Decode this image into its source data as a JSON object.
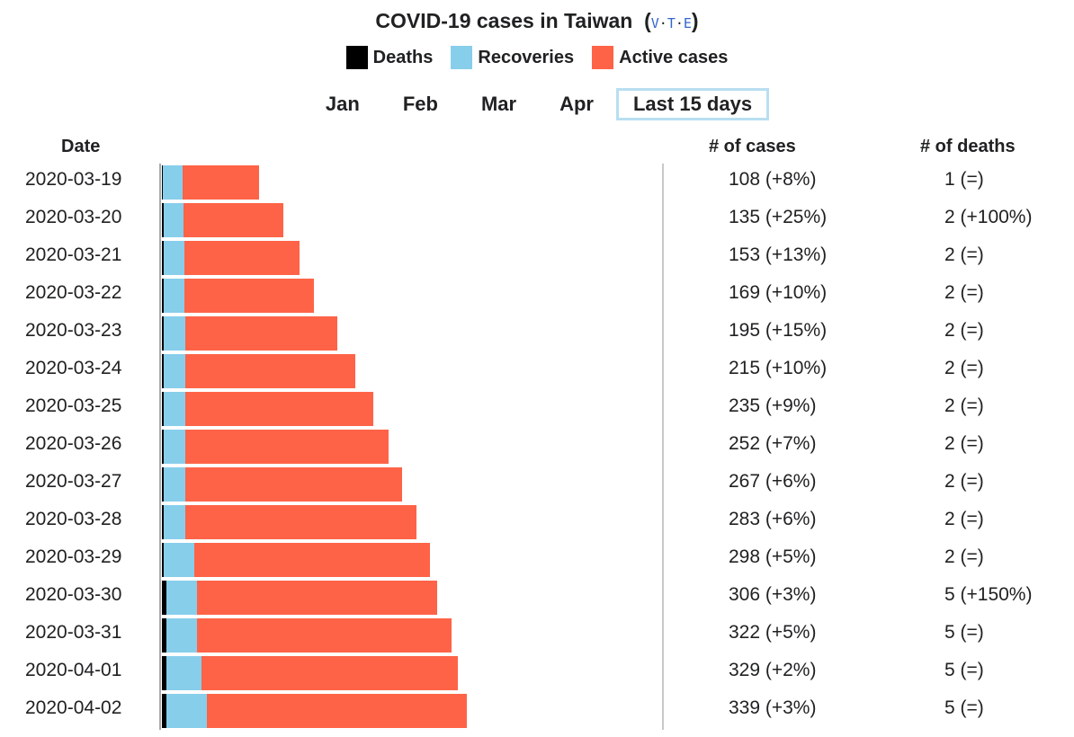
{
  "title": "COVID-19 cases in Taiwan",
  "vte": {
    "v": "V",
    "t": "T",
    "e": "E",
    "sep": "·"
  },
  "legend": [
    {
      "label": "Deaths",
      "color": "#000000"
    },
    {
      "label": "Recoveries",
      "color": "#87ceeb"
    },
    {
      "label": "Active cases",
      "color": "#ff6347"
    }
  ],
  "months": [
    {
      "label": "Jan",
      "active": false
    },
    {
      "label": "Feb",
      "active": false
    },
    {
      "label": "Mar",
      "active": false
    },
    {
      "label": "Apr",
      "active": false
    },
    {
      "label": "Last 15 days",
      "active": true
    }
  ],
  "headers": {
    "date": "Date",
    "cases": "# of cases",
    "deaths": "# of deaths"
  },
  "chart_data": {
    "type": "bar",
    "title": "COVID-19 cases in Taiwan",
    "orientation": "horizontal-stacked",
    "categories": [
      "2020-03-19",
      "2020-03-20",
      "2020-03-21",
      "2020-03-22",
      "2020-03-23",
      "2020-03-24",
      "2020-03-25",
      "2020-03-26",
      "2020-03-27",
      "2020-03-28",
      "2020-03-29",
      "2020-03-30",
      "2020-03-31",
      "2020-04-01",
      "2020-04-02"
    ],
    "series": [
      {
        "name": "Deaths",
        "color": "#000000",
        "values": [
          1,
          2,
          2,
          2,
          2,
          2,
          2,
          2,
          2,
          2,
          2,
          5,
          5,
          5,
          5
        ]
      },
      {
        "name": "Recoveries",
        "color": "#87ceeb",
        "values": [
          22,
          22,
          23,
          23,
          24,
          24,
          24,
          24,
          24,
          24,
          34,
          34,
          34,
          39,
          45
        ]
      },
      {
        "name": "Active cases",
        "color": "#ff6347",
        "values": [
          85,
          111,
          128,
          144,
          169,
          189,
          209,
          226,
          241,
          257,
          262,
          267,
          283,
          285,
          289
        ]
      }
    ],
    "cases_label": [
      "108 (+8%)",
      "135 (+25%)",
      "153 (+13%)",
      "169 (+10%)",
      "195 (+15%)",
      "215 (+10%)",
      "235 (+9%)",
      "252 (+7%)",
      "267 (+6%)",
      "283 (+6%)",
      "298 (+5%)",
      "306 (+3%)",
      "322 (+5%)",
      "329 (+2%)",
      "339 (+3%)"
    ],
    "deaths_label": [
      "1 (=)",
      "2 (+100%)",
      "2 (=)",
      "2 (=)",
      "2 (=)",
      "2 (=)",
      "2 (=)",
      "2 (=)",
      "2 (=)",
      "2 (=)",
      "2 (=)",
      "5 (+150%)",
      "5 (=)",
      "5 (=)",
      "5 (=)"
    ],
    "xlim": [
      0,
      700
    ]
  }
}
